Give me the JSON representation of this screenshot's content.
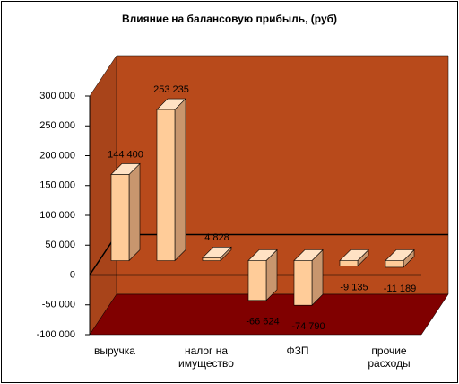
{
  "chart_data": {
    "type": "bar3d",
    "title": "Влияние на балансовую прибыль, (руб)",
    "categories": [
      "выручка",
      null,
      "налог на имущество",
      null,
      "ФЗП",
      null,
      "прочие расходы"
    ],
    "values": [
      144400,
      253235,
      4828,
      -66624,
      -74790,
      -9135,
      -11189
    ],
    "value_labels": [
      "144 400",
      "253 235",
      "4 828",
      "-66 624",
      "-74 790",
      "-9 135",
      "-11 189"
    ],
    "ylim": [
      -100000,
      300000
    ],
    "yticks": [
      {
        "value": -100000,
        "label": "-100 000"
      },
      {
        "value": -50000,
        "label": "-50 000"
      },
      0,
      {
        "value": 50000,
        "label": "50 000"
      },
      {
        "value": 100000,
        "label": "100 000"
      },
      {
        "value": 150000,
        "label": "150 000"
      },
      {
        "value": 200000,
        "label": "200 000"
      },
      {
        "value": 250000,
        "label": "250 000"
      },
      {
        "value": 300000,
        "label": "300 000"
      }
    ],
    "color": "#FFCC99"
  }
}
